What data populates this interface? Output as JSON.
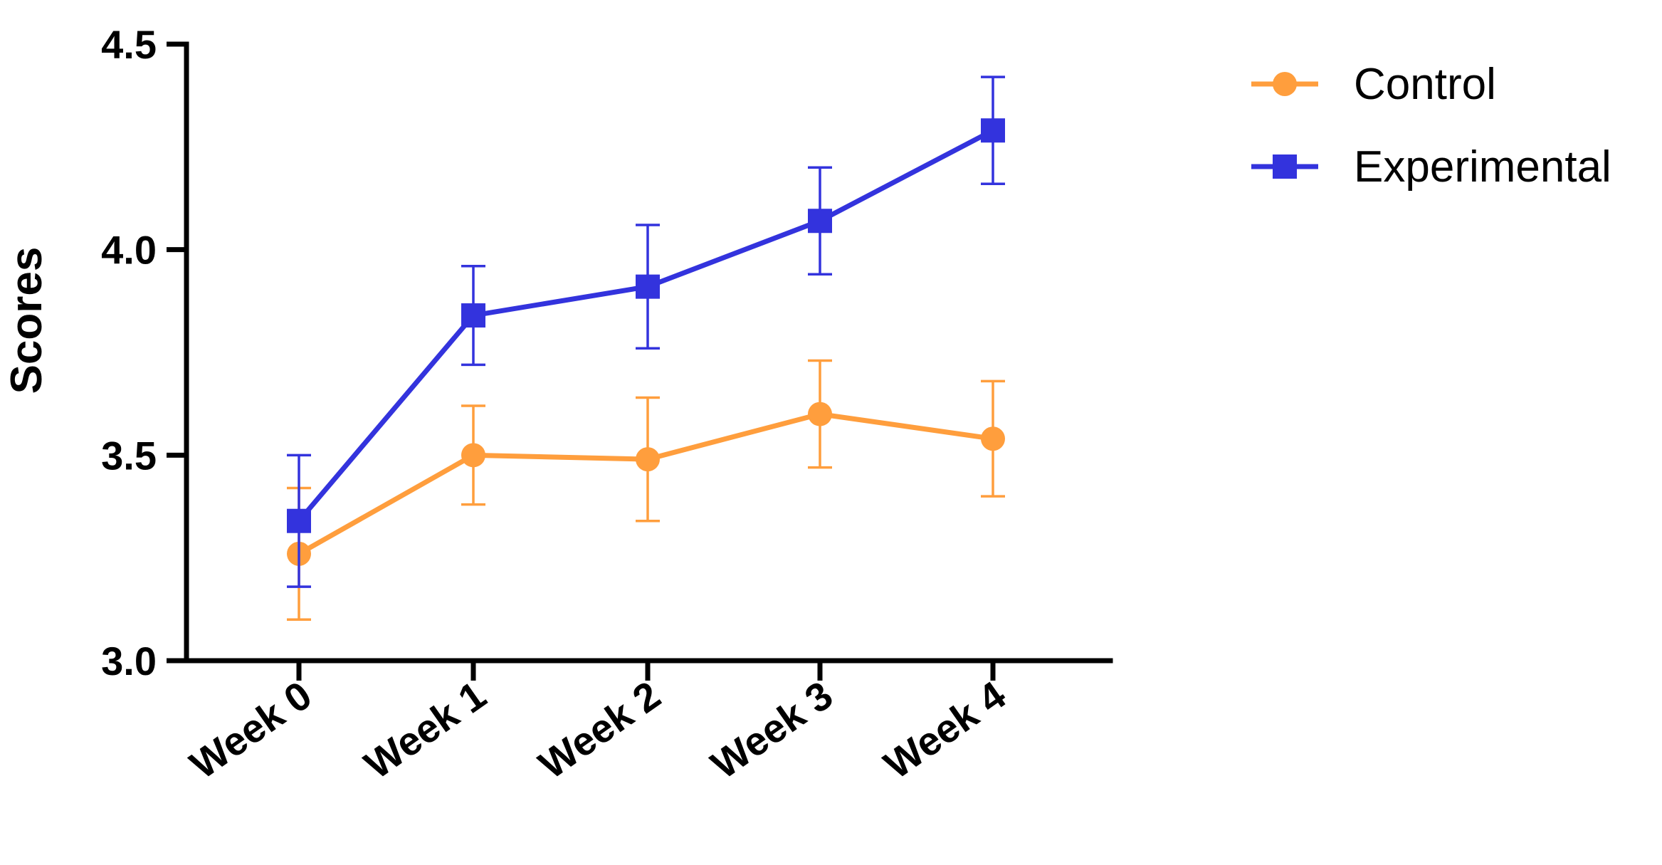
{
  "chart_data": {
    "type": "line",
    "title": "",
    "xlabel": "",
    "ylabel": "Scores",
    "categories": [
      "Week 0",
      "Week 1",
      "Week 2",
      "Week 3",
      "Week 4"
    ],
    "ylim": [
      3.0,
      4.5
    ],
    "yticks": [
      3.0,
      3.5,
      4.0,
      4.5
    ],
    "ytick_labels": [
      "3.0",
      "3.5",
      "4.0",
      "4.5"
    ],
    "grid": false,
    "legend_position": "top-right outside",
    "series": [
      {
        "name": "Control",
        "color": "#FF9E3D",
        "marker": "circle",
        "values": [
          3.26,
          3.5,
          3.49,
          3.6,
          3.54
        ],
        "error": [
          0.16,
          0.12,
          0.15,
          0.13,
          0.14
        ]
      },
      {
        "name": "Experimental",
        "color": "#3333DD",
        "marker": "square",
        "values": [
          3.34,
          3.84,
          3.91,
          4.07,
          4.29
        ],
        "error": [
          0.16,
          0.12,
          0.15,
          0.13,
          0.13
        ]
      }
    ]
  }
}
